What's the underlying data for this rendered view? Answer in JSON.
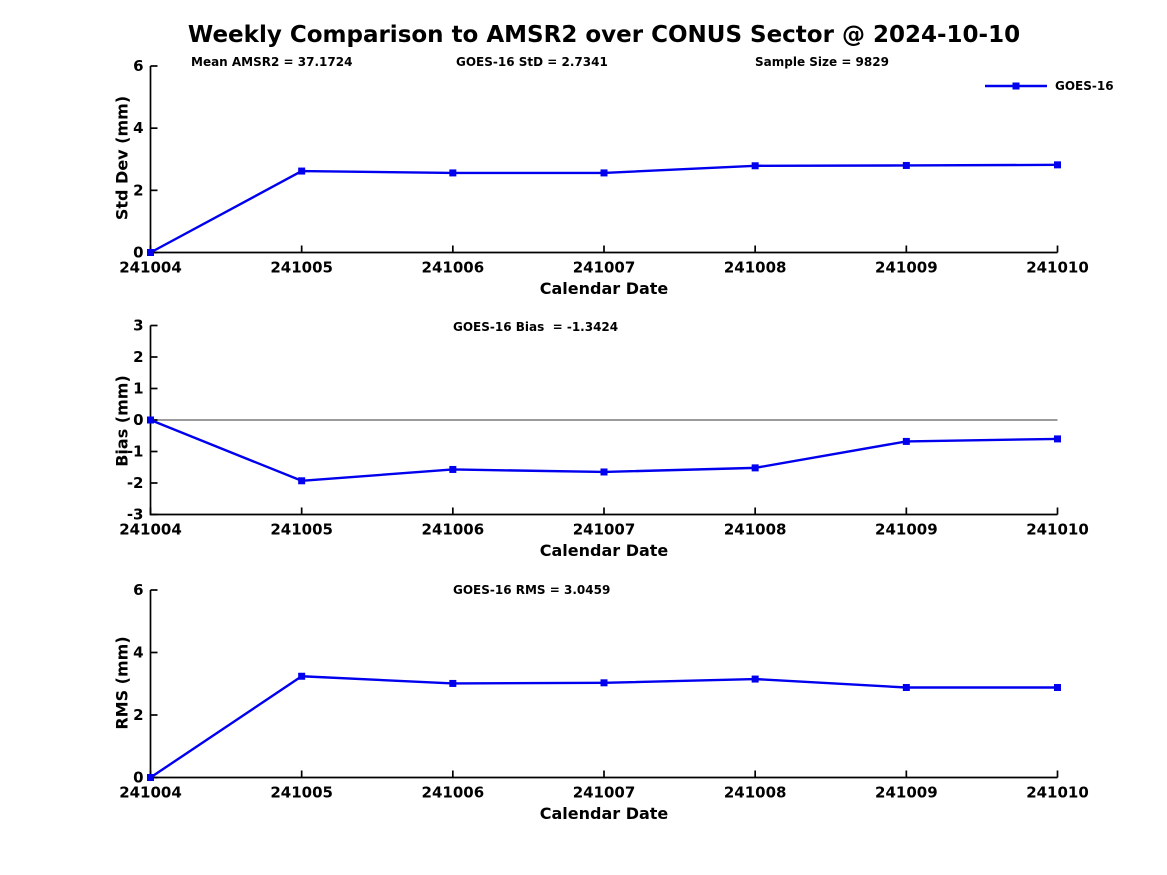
{
  "figure": {
    "title": "Weekly Comparison to AMSR2 over CONUS Sector @ 2024-10-10",
    "legend": {
      "label": "GOES-16",
      "marker": "square"
    },
    "colors": {
      "line": "#0000EE",
      "marker": "#0000EE",
      "axis": "#000000",
      "zero_line": "#7a7a7a",
      "text": "#000000",
      "background": "#FFFFFF"
    }
  },
  "chart_data": [
    {
      "id": "stddev",
      "type": "line",
      "categories": [
        "241004",
        "241005",
        "241006",
        "241007",
        "241008",
        "241009",
        "241010"
      ],
      "series": [
        {
          "name": "GOES-16",
          "values": [
            0.0,
            2.62,
            2.56,
            2.56,
            2.79,
            2.8,
            2.82
          ]
        }
      ],
      "annotations": [
        "Mean AMSR2 = 37.1724",
        "GOES-16 StD = 2.7341",
        "Sample Size = 9829"
      ],
      "xlabel": "Calendar Date",
      "ylabel": "Std Dev (mm)",
      "ylim": [
        0,
        6
      ],
      "yticks": [
        0,
        2,
        4,
        6
      ],
      "zero_line": false,
      "grid": false,
      "legend_position": "top-right"
    },
    {
      "id": "bias",
      "type": "line",
      "categories": [
        "241004",
        "241005",
        "241006",
        "241007",
        "241008",
        "241009",
        "241010"
      ],
      "series": [
        {
          "name": "GOES-16",
          "values": [
            0.0,
            -1.93,
            -1.57,
            -1.65,
            -1.52,
            -0.68,
            -0.6
          ]
        }
      ],
      "annotations": [
        "GOES-16 Bias  = -1.3424"
      ],
      "xlabel": "Calendar Date",
      "ylabel": "Bias (mm)",
      "ylim": [
        -3,
        3
      ],
      "yticks": [
        -3,
        -2,
        -1,
        0,
        1,
        2,
        3
      ],
      "zero_line": true,
      "grid": false
    },
    {
      "id": "rms",
      "type": "line",
      "categories": [
        "241004",
        "241005",
        "241006",
        "241007",
        "241008",
        "241009",
        "241010"
      ],
      "series": [
        {
          "name": "GOES-16",
          "values": [
            0.0,
            3.24,
            3.01,
            3.03,
            3.15,
            2.88,
            2.88
          ]
        }
      ],
      "annotations": [
        "GOES-16 RMS = 3.0459"
      ],
      "xlabel": "Calendar Date",
      "ylabel": "RMS (mm)",
      "ylim": [
        0,
        6
      ],
      "yticks": [
        0,
        2,
        4,
        6
      ],
      "zero_line": false,
      "grid": false
    }
  ]
}
